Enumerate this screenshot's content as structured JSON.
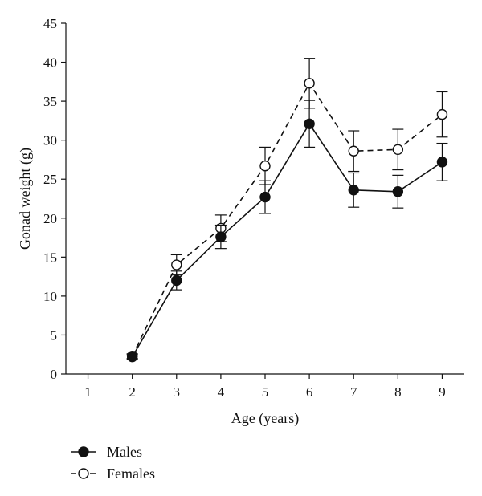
{
  "chart_data": {
    "type": "line",
    "title": "",
    "xlabel": "Age (years)",
    "ylabel": "Gonad weight (g)",
    "xlim": [
      0.5,
      9.5
    ],
    "ylim": [
      0,
      45
    ],
    "x_ticks": [
      "1",
      "2",
      "3",
      "4",
      "5",
      "6",
      "7",
      "8",
      "9"
    ],
    "y_ticks": [
      "0",
      "5",
      "10",
      "15",
      "20",
      "25",
      "30",
      "35",
      "40",
      "45"
    ],
    "grid": false,
    "legend_position": "bottom-left",
    "series": [
      {
        "name": "Males",
        "marker": "filled-circle",
        "line_style": "solid",
        "color": "#111111",
        "x": [
          2,
          3,
          4,
          5,
          6,
          7,
          8,
          9
        ],
        "values": [
          2.2,
          12.0,
          17.6,
          22.7,
          32.1,
          23.6,
          23.4,
          27.2
        ],
        "error": [
          0.3,
          1.2,
          1.5,
          2.1,
          3.0,
          2.2,
          2.1,
          2.4
        ]
      },
      {
        "name": "Females",
        "marker": "open-circle",
        "line_style": "dashed",
        "color": "#111111",
        "x": [
          2,
          3,
          4,
          5,
          6,
          7,
          8,
          9
        ],
        "values": [
          2.3,
          14.0,
          18.7,
          26.7,
          37.3,
          28.6,
          28.8,
          33.3
        ],
        "error": [
          0.3,
          1.3,
          1.7,
          2.4,
          3.2,
          2.6,
          2.6,
          2.9
        ]
      }
    ]
  }
}
